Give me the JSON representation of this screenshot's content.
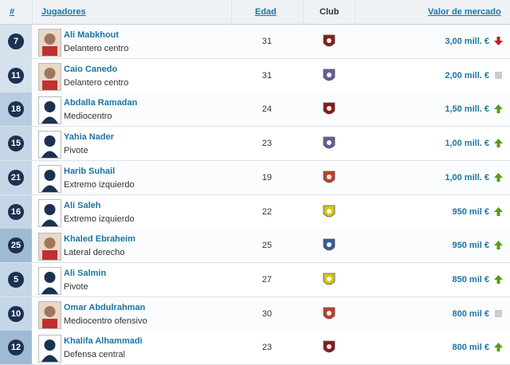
{
  "table": {
    "header": [
      "#",
      "Jugadores",
      "Edad",
      "Club",
      "Valor de mercado"
    ],
    "rows": [
      [
        7,
        "Ali Mabkhout",
        "Delantero centro",
        31,
        "3,00 mill. €"
      ],
      [
        11,
        "Caio Canedo",
        "Delantero centro",
        31,
        "2,00 mill. €"
      ],
      [
        18,
        "Abdalla Ramadan",
        "Mediocentro",
        24,
        "1,50 mill. €"
      ],
      [
        15,
        "Yahia Nader",
        "Pivote",
        23,
        "1,00 mill. €"
      ],
      [
        21,
        "Harib Suhail",
        "Extremo izquierdo",
        19,
        "1,00 mill. €"
      ],
      [
        16,
        "Ali Saleh",
        "Extremo izquierdo",
        22,
        "950 mil €"
      ],
      [
        25,
        "Khaled Ebraheim",
        "Lateral derecho",
        25,
        "950 mil €"
      ],
      [
        5,
        "Ali Salmin",
        "Pivote",
        27,
        "850 mil €"
      ],
      [
        10,
        "Omar Abdulrahman",
        "Mediocentro ofensivo",
        30,
        "800 mil €"
      ],
      [
        12,
        "Khalifa Alhammadi",
        "Defensa central",
        23,
        "800 mil €"
      ]
    ]
  }
}
